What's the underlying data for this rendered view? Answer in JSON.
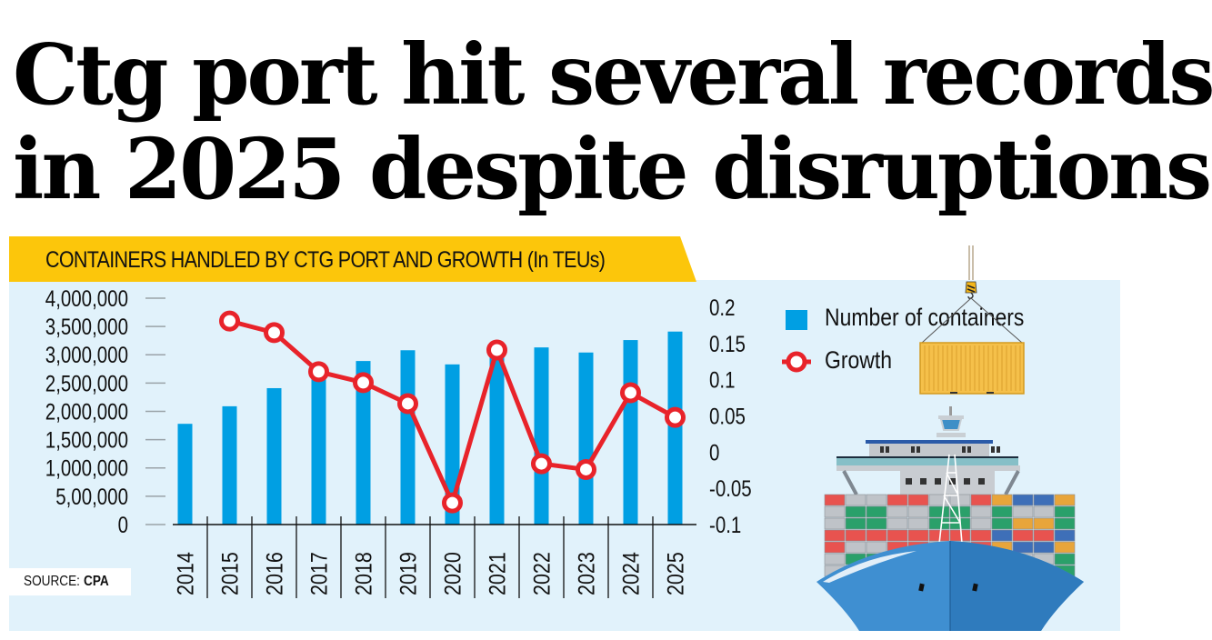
{
  "headline": {
    "line1": "Ctg port hit several records",
    "line2": "in 2025 despite disruptions"
  },
  "banner": {
    "title": "CONTAINERS HANDLED BY CTG PORT AND GROWTH",
    "unit": "(In TEUs)"
  },
  "source": {
    "label": "SOURCE:",
    "value": "CPA"
  },
  "legend": {
    "bars": "Number of containers",
    "line": "Growth"
  },
  "colors": {
    "bar": "#009fe3",
    "line": "#e8232a",
    "panel": "#e1f2fb",
    "banner": "#fcc60b"
  },
  "chart_data": {
    "type": "bar",
    "title": "CONTAINERS HANDLED BY CTG PORT AND GROWTH (In TEUs)",
    "xlabel": "",
    "ylabel": "",
    "categories": [
      "2014",
      "2015",
      "2016",
      "2017",
      "2018",
      "2019",
      "2020",
      "2021",
      "2022",
      "2023",
      "2024",
      "2025"
    ],
    "series": [
      {
        "name": "Number of containers",
        "type": "bar",
        "axis": "left",
        "values": [
          1780000,
          2090000,
          2410000,
          2600000,
          2890000,
          3080000,
          2830000,
          3100000,
          3130000,
          3040000,
          3260000,
          3410000
        ]
      },
      {
        "name": "Growth",
        "type": "line",
        "axis": "right",
        "values": [
          null,
          0.181,
          0.165,
          0.111,
          0.096,
          0.067,
          -0.07,
          0.141,
          -0.016,
          -0.024,
          0.082,
          0.048
        ]
      }
    ],
    "y_left": {
      "range": [
        0,
        4000000
      ],
      "ticks": [
        0,
        500000,
        1000000,
        1500000,
        2000000,
        2500000,
        3000000,
        3500000,
        4000000
      ],
      "tick_labels": [
        "0",
        "5,00,000",
        "1,000,000",
        "1,500,000",
        "2,000,000",
        "2,500,000",
        "3,000,000",
        "3,500,000",
        "4,000,000"
      ]
    },
    "y_right": {
      "range": [
        -0.1,
        0.2
      ],
      "ticks": [
        -0.1,
        -0.05,
        0,
        0.05,
        0.1,
        0.15,
        0.2
      ],
      "tick_labels": [
        "-0.1",
        "-0.05",
        "0",
        "0.05",
        "0.1",
        "0.15",
        "0.2"
      ]
    },
    "grid": false,
    "legend_position": "top-right",
    "source": "SOURCE: CPA"
  }
}
